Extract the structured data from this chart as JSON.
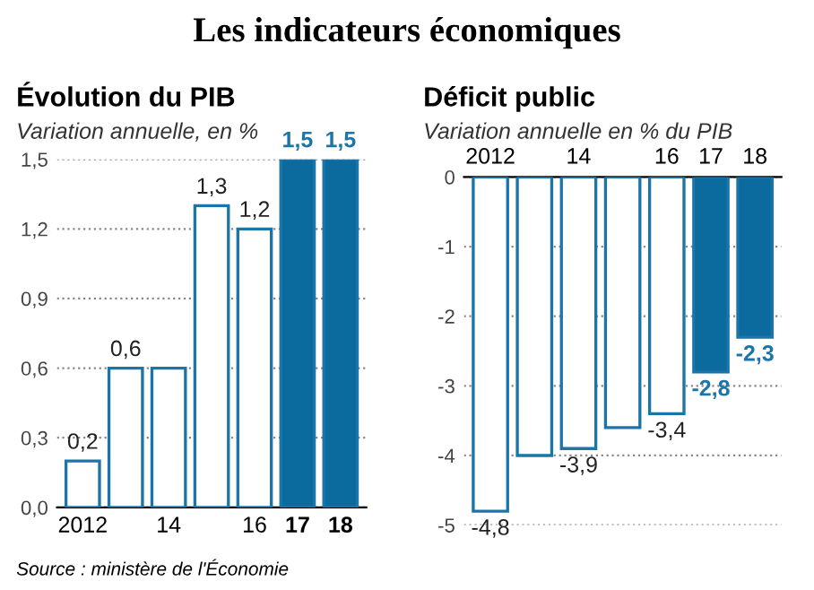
{
  "chart_data": [
    {
      "type": "bar",
      "title": "Évolution du PIB",
      "subtitle": "Variation annuelle, en %",
      "categories": [
        "2012",
        null,
        "14",
        null,
        "16",
        "17",
        "18"
      ],
      "values": [
        0.2,
        0.6,
        0.6,
        1.3,
        1.2,
        1.5,
        1.5
      ],
      "color": "#1b75a8",
      "colors": [
        "#ffffff",
        "#ffffff",
        "#ffffff",
        "#ffffff",
        "#ffffff",
        "#0b6a9e",
        "#0b6a9e"
      ],
      "value_labels": [
        "0,2",
        "0,6",
        null,
        "1,3",
        "1,2",
        "1,5",
        "1,5"
      ],
      "ylim": [
        0,
        1.5
      ],
      "yticks": [
        {
          "value": 0,
          "label": "0,0"
        },
        {
          "value": 0.3,
          "label": "0,3"
        },
        {
          "value": 0.6,
          "label": "0,6"
        },
        {
          "value": 0.9,
          "label": "0,9"
        },
        {
          "value": 1.2,
          "label": "1,2"
        },
        {
          "value": 1.5,
          "label": "1,5"
        }
      ],
      "grid": "y",
      "annotations": [
        "Les indicateurs économiques",
        "Source : ministère de l'Économie"
      ]
    },
    {
      "type": "bar",
      "title": "Déficit public",
      "subtitle": "Variation annuelle en % du PIB",
      "categories": [
        "2012",
        null,
        "14",
        null,
        "16",
        "17",
        "18"
      ],
      "values": [
        -4.8,
        -4.0,
        -3.9,
        -3.6,
        -3.4,
        -2.8,
        -2.3
      ],
      "color": "#1b75a8",
      "colors": [
        "#ffffff",
        "#ffffff",
        "#ffffff",
        "#ffffff",
        "#ffffff",
        "#0b6a9e",
        "#0b6a9e"
      ],
      "value_labels": [
        "-4,8",
        null,
        "-3,9",
        null,
        "-3,4",
        "-2,8",
        "-2,3"
      ],
      "ylim": [
        -5,
        0
      ],
      "yticks": [
        0,
        -1,
        -2,
        -3,
        -4,
        -5
      ],
      "grid": "y"
    }
  ]
}
